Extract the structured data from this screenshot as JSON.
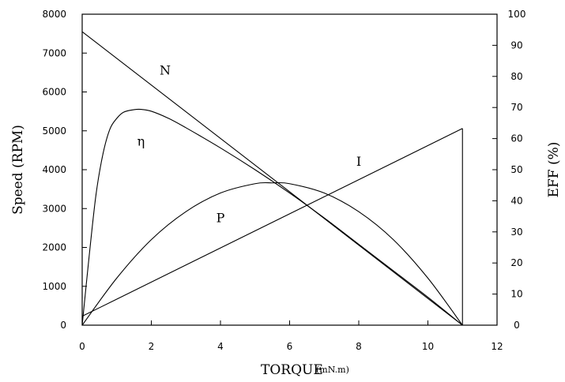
{
  "chart_data": {
    "type": "line",
    "xlabel": "TORQUE",
    "xlabel_unit": "(mN.m)",
    "ylabel_left": "Speed (RPM)",
    "ylabel_right": "EFF (%)",
    "xlim": [
      0,
      12
    ],
    "ylim_left": [
      0,
      8000
    ],
    "ylim_right": [
      0,
      100
    ],
    "x_ticks": [
      0,
      2,
      4,
      6,
      8,
      10,
      12
    ],
    "y_ticks_left": [
      0,
      1000,
      2000,
      3000,
      4000,
      5000,
      6000,
      7000,
      8000
    ],
    "y_ticks_right": [
      0,
      10,
      20,
      30,
      40,
      50,
      60,
      70,
      80,
      90,
      100
    ],
    "grid": false,
    "series": [
      {
        "name": "N",
        "axis": "left",
        "x": [
          0,
          11
        ],
        "y": [
          7550,
          0
        ]
      },
      {
        "name": "I",
        "axis": "left",
        "x": [
          0,
          11
        ],
        "y": [
          230,
          5060
        ]
      },
      {
        "name": "P",
        "axis": "left",
        "x": [
          0,
          1,
          2,
          3,
          4,
          5,
          5.5,
          6,
          7,
          8,
          9,
          10,
          11
        ],
        "y": [
          0,
          1210,
          2200,
          2920,
          3400,
          3640,
          3660,
          3640,
          3400,
          2920,
          2200,
          1210,
          0
        ]
      },
      {
        "name": "η",
        "axis": "right",
        "x": [
          0,
          0.2,
          0.4,
          0.6,
          0.8,
          1.0,
          1.2,
          1.5,
          1.7,
          2.0,
          2.5,
          3,
          4,
          5,
          6,
          7,
          8,
          9,
          10,
          11
        ],
        "y": [
          0,
          22,
          42,
          55,
          63,
          66.5,
          68.5,
          69.3,
          69.4,
          68.8,
          66.5,
          63.5,
          57,
          50,
          42.5,
          34.5,
          26,
          17.5,
          9,
          0
        ]
      }
    ]
  }
}
